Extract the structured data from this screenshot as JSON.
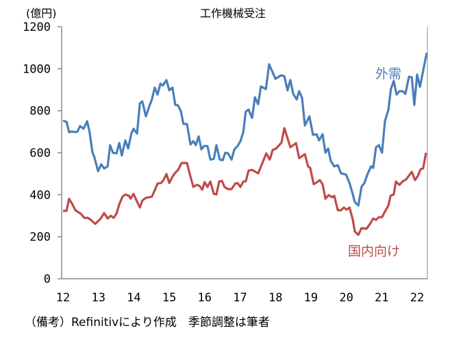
{
  "chart_data": {
    "type": "line",
    "title": "工作機械受注",
    "ylabel": "(億円)",
    "xlabel": "",
    "ylim": [
      0,
      1200
    ],
    "xlim": [
      12,
      22.3
    ],
    "yticks": [
      0,
      200,
      400,
      600,
      800,
      1000,
      1200
    ],
    "xticks": [
      12,
      13,
      14,
      15,
      16,
      17,
      18,
      19,
      20,
      21,
      22
    ],
    "xtick_labels": [
      "12",
      "13",
      "14",
      "15",
      "16",
      "17",
      "18",
      "19",
      "20",
      "21",
      "22"
    ],
    "grid": false,
    "legend": "inline labels",
    "note": "（備考）Refinitivにより作成　季節調整は筆者",
    "series": [
      {
        "name": "外需",
        "color": "#4a7ebb",
        "x": [
          12.0,
          12.1,
          12.17,
          12.25,
          12.35,
          12.41,
          12.48,
          12.58,
          12.68,
          12.75,
          12.83,
          12.89,
          12.99,
          13.08,
          13.16,
          13.26,
          13.33,
          13.41,
          13.51,
          13.59,
          13.66,
          13.76,
          13.84,
          13.93,
          13.99,
          14.09,
          14.17,
          14.24,
          14.34,
          14.44,
          14.51,
          14.59,
          14.67,
          14.75,
          14.82,
          14.92,
          15.0,
          15.09,
          15.17,
          15.25,
          15.33,
          15.4,
          15.5,
          15.6,
          15.68,
          15.75,
          15.83,
          15.91,
          15.98,
          16.08,
          16.16,
          16.26,
          16.33,
          16.43,
          16.51,
          16.58,
          16.66,
          16.76,
          16.84,
          16.93,
          17.01,
          17.09,
          17.16,
          17.24,
          17.34,
          17.42,
          17.51,
          17.59,
          17.73,
          17.82,
          18.0,
          18.15,
          18.25,
          18.34,
          18.42,
          18.5,
          18.6,
          18.67,
          18.75,
          18.83,
          18.96,
          19.06,
          19.16,
          19.23,
          19.33,
          19.41,
          19.49,
          19.56,
          19.66,
          19.76,
          19.85,
          19.99,
          20.09,
          20.18,
          20.24,
          20.34,
          20.43,
          20.51,
          20.61,
          20.7,
          20.76,
          20.84,
          20.92,
          21.01,
          21.09,
          21.19,
          21.26,
          21.34,
          21.42,
          21.5,
          21.59,
          21.67,
          21.77,
          21.85,
          21.92,
          22.0,
          22.08,
          22.27
        ],
        "y": [
          753,
          747,
          698,
          701,
          698,
          701,
          727,
          714,
          750,
          698,
          603,
          577,
          512,
          545,
          525,
          535,
          636,
          600,
          597,
          646,
          587,
          659,
          620,
          691,
          714,
          691,
          835,
          845,
          773,
          822,
          854,
          910,
          877,
          929,
          920,
          946,
          897,
          910,
          828,
          825,
          796,
          737,
          737,
          639,
          655,
          636,
          678,
          616,
          632,
          632,
          567,
          571,
          636,
          567,
          564,
          600,
          597,
          567,
          616,
          632,
          655,
          698,
          796,
          805,
          766,
          864,
          831,
          916,
          903,
          1021,
          952,
          968,
          965,
          897,
          946,
          880,
          854,
          893,
          861,
          730,
          773,
          685,
          688,
          659,
          688,
          600,
          620,
          561,
          535,
          541,
          502,
          496,
          456,
          404,
          365,
          349,
          437,
          456,
          502,
          535,
          528,
          626,
          636,
          600,
          750,
          805,
          903,
          942,
          877,
          893,
          893,
          880,
          962,
          959,
          828,
          972,
          913,
          1076
        ]
      },
      {
        "name": "国内向け",
        "color": "#be4b48",
        "x": [
          12.0,
          12.1,
          12.17,
          12.25,
          12.35,
          12.44,
          12.5,
          12.6,
          12.7,
          12.79,
          12.91,
          13.01,
          13.08,
          13.16,
          13.26,
          13.35,
          13.43,
          13.51,
          13.59,
          13.68,
          13.76,
          13.86,
          13.91,
          13.99,
          14.07,
          14.17,
          14.24,
          14.34,
          14.44,
          14.51,
          14.59,
          14.67,
          14.77,
          14.84,
          14.92,
          15.0,
          15.09,
          15.17,
          15.25,
          15.35,
          15.5,
          15.6,
          15.68,
          15.77,
          15.85,
          15.93,
          16.0,
          16.08,
          16.16,
          16.26,
          16.33,
          16.41,
          16.49,
          16.56,
          16.66,
          16.76,
          16.86,
          16.93,
          17.01,
          17.09,
          17.16,
          17.24,
          17.34,
          17.51,
          17.63,
          17.74,
          17.84,
          17.92,
          18.02,
          18.17,
          18.25,
          18.32,
          18.42,
          18.58,
          18.67,
          18.83,
          18.92,
          18.98,
          19.08,
          19.18,
          19.25,
          19.33,
          19.41,
          19.5,
          19.6,
          19.66,
          19.76,
          19.85,
          19.93,
          20.01,
          20.09,
          20.18,
          20.24,
          20.34,
          20.43,
          20.57,
          20.67,
          20.76,
          20.84,
          20.92,
          21.01,
          21.09,
          21.19,
          21.25,
          21.34,
          21.4,
          21.5,
          21.59,
          21.69,
          21.85,
          21.94,
          22.02,
          22.1,
          22.17,
          22.25
        ],
        "y": [
          323,
          323,
          381,
          359,
          326,
          316,
          310,
          290,
          290,
          280,
          261,
          277,
          290,
          313,
          287,
          300,
          290,
          310,
          355,
          391,
          401,
          395,
          381,
          404,
          375,
          339,
          372,
          385,
          388,
          391,
          421,
          453,
          456,
          470,
          499,
          456,
          486,
          505,
          518,
          551,
          551,
          486,
          437,
          447,
          443,
          424,
          460,
          437,
          463,
          404,
          401,
          463,
          466,
          437,
          427,
          427,
          453,
          456,
          437,
          463,
          463,
          515,
          518,
          502,
          551,
          597,
          567,
          613,
          620,
          649,
          717,
          681,
          626,
          646,
          574,
          593,
          535,
          528,
          450,
          460,
          470,
          450,
          381,
          398,
          388,
          395,
          326,
          326,
          339,
          329,
          339,
          284,
          225,
          209,
          241,
          238,
          261,
          287,
          280,
          293,
          293,
          320,
          349,
          395,
          401,
          463,
          447,
          463,
          473,
          509,
          470,
          489,
          522,
          525,
          600
        ]
      }
    ]
  }
}
